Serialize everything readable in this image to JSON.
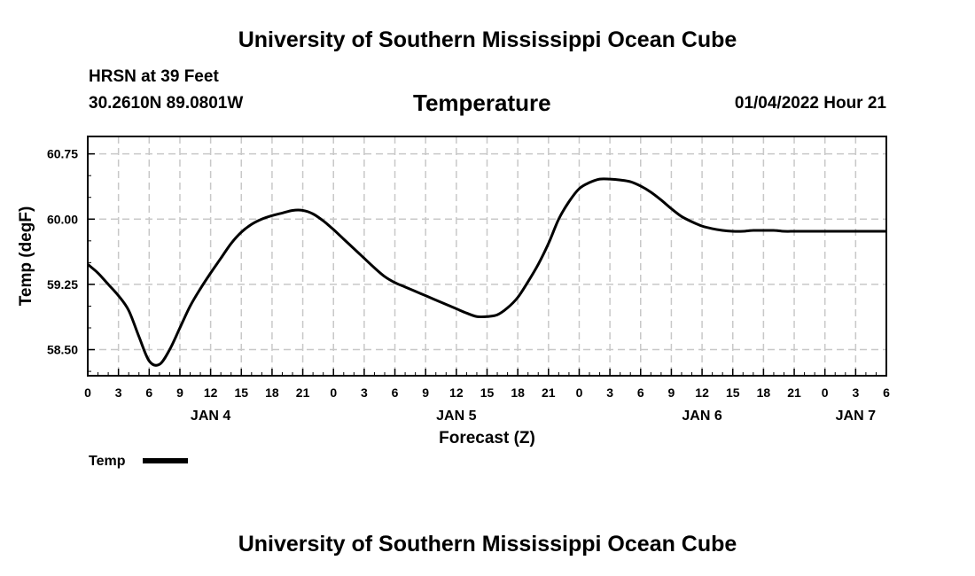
{
  "header": {
    "top_title": "University of Southern Mississippi Ocean Cube",
    "station": "HRSN at 39 Feet",
    "coords": "30.2610N  89.0801W",
    "variable": "Temperature",
    "datetime": "01/04/2022 Hour 21"
  },
  "footer": {
    "bottom_title": "University of Southern Mississippi Ocean Cube"
  },
  "chart_data": {
    "type": "line",
    "title": "Temperature",
    "xlabel": "Forecast (Z)",
    "ylabel": "Temp (degF)",
    "x_unit": "hours since 2022-01-04 00Z",
    "xlim": [
      0,
      78
    ],
    "ylim": [
      58.2,
      60.95
    ],
    "y_ticks": [
      58.5,
      59.25,
      60.0,
      60.75
    ],
    "y_tick_labels": [
      "58.50",
      "59.25",
      "60.00",
      "60.75"
    ],
    "x_ticks": [
      0,
      3,
      6,
      9,
      12,
      15,
      18,
      21,
      24,
      27,
      30,
      33,
      36,
      39,
      42,
      45,
      48,
      51,
      54,
      57,
      60,
      63,
      66,
      69,
      72,
      75,
      78
    ],
    "x_tick_labels": [
      "0",
      "3",
      "6",
      "9",
      "12",
      "15",
      "18",
      "21",
      "0",
      "3",
      "6",
      "9",
      "12",
      "15",
      "18",
      "21",
      "0",
      "3",
      "6",
      "9",
      "12",
      "15",
      "18",
      "21",
      "0",
      "3",
      "6"
    ],
    "date_labels": [
      {
        "x": 12,
        "label": "JAN 4"
      },
      {
        "x": 36,
        "label": "JAN 5"
      },
      {
        "x": 60,
        "label": "JAN 6"
      },
      {
        "x": 75,
        "label": "JAN 7"
      }
    ],
    "grid": true,
    "legend": {
      "position": "bottom-left",
      "entries": [
        "Temp"
      ]
    },
    "series": [
      {
        "name": "Temp",
        "color": "#000000",
        "x": [
          0,
          1,
          2,
          3,
          4,
          5,
          6,
          7,
          8,
          9,
          10,
          11,
          12,
          13,
          14,
          15,
          16,
          17,
          18,
          19,
          20,
          21,
          22,
          23,
          24,
          25,
          26,
          27,
          28,
          29,
          30,
          31,
          32,
          33,
          34,
          35,
          36,
          37,
          38,
          39,
          40,
          41,
          42,
          43,
          44,
          45,
          46,
          47,
          48,
          49,
          50,
          51,
          52,
          53,
          54,
          55,
          56,
          57,
          58,
          59,
          60,
          61,
          62,
          63,
          64,
          65,
          66,
          67,
          68,
          69,
          70,
          71,
          72,
          73,
          74,
          75,
          76,
          77,
          78
        ],
        "values": [
          59.48,
          59.38,
          59.25,
          59.12,
          58.95,
          58.65,
          58.37,
          58.33,
          58.5,
          58.75,
          59.0,
          59.2,
          59.38,
          59.55,
          59.72,
          59.85,
          59.94,
          60.0,
          60.04,
          60.07,
          60.1,
          60.1,
          60.06,
          59.98,
          59.88,
          59.77,
          59.66,
          59.55,
          59.44,
          59.34,
          59.27,
          59.22,
          59.17,
          59.12,
          59.07,
          59.02,
          58.97,
          58.92,
          58.88,
          58.88,
          58.9,
          58.98,
          59.1,
          59.28,
          59.48,
          59.72,
          60.0,
          60.2,
          60.35,
          60.42,
          60.46,
          60.46,
          60.45,
          60.43,
          60.38,
          60.31,
          60.22,
          60.12,
          60.03,
          59.97,
          59.92,
          59.89,
          59.87,
          59.86,
          59.86,
          59.87,
          59.87,
          59.87,
          59.86,
          59.86,
          59.86,
          59.86,
          59.86,
          59.86,
          59.86,
          59.86,
          59.86,
          59.86,
          59.86
        ]
      }
    ]
  }
}
